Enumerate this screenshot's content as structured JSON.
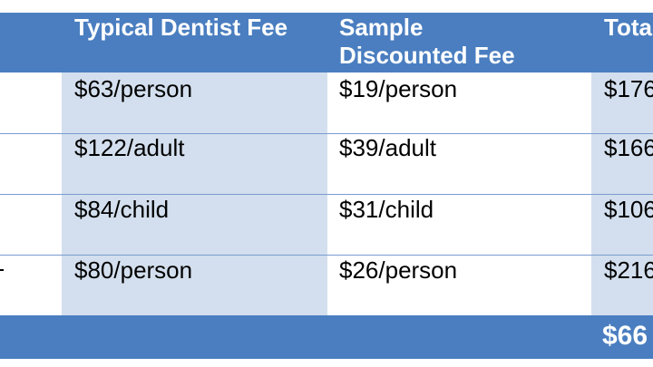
{
  "table": {
    "headers": [
      "Typical Dentist Fee",
      "Sample Discounted Fee",
      "Tota"
    ],
    "rows": [
      [
        "$63/person",
        "$19/person",
        "$176"
      ],
      [
        "$122/adult",
        "$39/adult",
        "$166"
      ],
      [
        "$84/child",
        "$31/child",
        "$106"
      ],
      [
        "$80/person",
        "$26/person",
        "$216"
      ]
    ],
    "total": "$66"
  },
  "colors": {
    "header_blue": "#4a7ec0",
    "band_light_blue": "#d3dfee",
    "rule_blue": "#7a9cd0"
  }
}
